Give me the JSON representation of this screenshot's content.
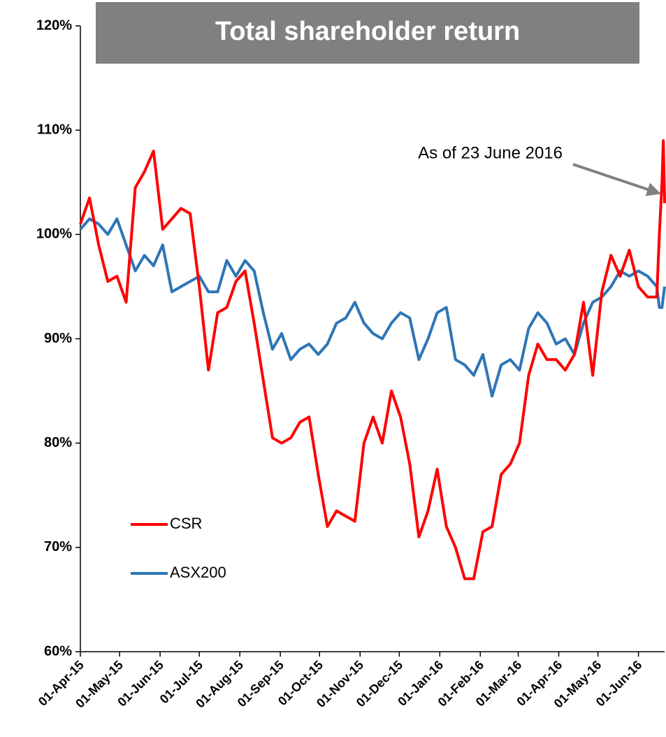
{
  "chart_data": {
    "type": "line",
    "title": "Total shareholder return",
    "annotations": [
      {
        "text": "As of 23 June 2016"
      }
    ],
    "x": [
      "2015-04-01",
      "2015-04-08",
      "2015-04-15",
      "2015-04-22",
      "2015-04-29",
      "2015-05-06",
      "2015-05-13",
      "2015-05-20",
      "2015-05-27",
      "2015-06-03",
      "2015-06-10",
      "2015-06-17",
      "2015-06-24",
      "2015-07-01",
      "2015-07-08",
      "2015-07-15",
      "2015-07-22",
      "2015-07-29",
      "2015-08-05",
      "2015-08-12",
      "2015-08-19",
      "2015-08-26",
      "2015-09-02",
      "2015-09-09",
      "2015-09-16",
      "2015-09-23",
      "2015-09-30",
      "2015-10-07",
      "2015-10-14",
      "2015-10-21",
      "2015-10-28",
      "2015-11-04",
      "2015-11-11",
      "2015-11-18",
      "2015-11-25",
      "2015-12-02",
      "2015-12-09",
      "2015-12-16",
      "2015-12-23",
      "2015-12-30",
      "2016-01-06",
      "2016-01-13",
      "2016-01-20",
      "2016-01-27",
      "2016-02-03",
      "2016-02-10",
      "2016-02-17",
      "2016-02-24",
      "2016-03-02",
      "2016-03-09",
      "2016-03-16",
      "2016-03-23",
      "2016-03-30",
      "2016-04-06",
      "2016-04-13",
      "2016-04-20",
      "2016-04-27",
      "2016-05-04",
      "2016-05-11",
      "2016-05-18",
      "2016-05-25",
      "2016-06-01",
      "2016-06-08",
      "2016-06-15",
      "2016-06-17",
      "2016-06-19",
      "2016-06-20",
      "2016-06-21"
    ],
    "series": [
      {
        "name": "CSR",
        "color": "#ff0000",
        "values": [
          101,
          103.5,
          99,
          95.5,
          96,
          93.5,
          104.5,
          106,
          108,
          100.5,
          101.5,
          102.5,
          102,
          95,
          87,
          92.5,
          93,
          95.5,
          96.5,
          91.5,
          86,
          80.5,
          80,
          80.5,
          82,
          82.5,
          77,
          72,
          73.5,
          73,
          72.5,
          80,
          82.5,
          80,
          85,
          82.5,
          78,
          71,
          73.5,
          77.5,
          72,
          70,
          67,
          67,
          71.5,
          72,
          77,
          78,
          80,
          86.5,
          89.5,
          88,
          88,
          87,
          88.5,
          93.5,
          86.5,
          94.5,
          98,
          96,
          98.5,
          95,
          94,
          94,
          100,
          105,
          109,
          103
        ]
      },
      {
        "name": "ASX200",
        "color": "#2e75b6",
        "values": [
          100.5,
          101.5,
          101,
          100,
          101.5,
          99,
          96.5,
          98,
          97,
          99,
          94.5,
          95,
          95.5,
          96,
          94.5,
          94.5,
          97.5,
          96,
          97.5,
          96.5,
          92.5,
          89,
          90.5,
          88,
          89,
          89.5,
          88.5,
          89.5,
          91.5,
          92,
          93.5,
          91.5,
          90.5,
          90,
          91.5,
          92.5,
          92,
          88,
          90,
          92.5,
          93,
          88,
          87.5,
          86.5,
          88.5,
          84.5,
          87.5,
          88,
          87,
          91,
          92.5,
          91.5,
          89.5,
          90,
          88.5,
          91.5,
          93.5,
          94,
          95,
          96.5,
          96,
          96.5,
          96,
          95,
          93,
          93,
          94,
          95
        ]
      }
    ],
    "xlim": [
      "2015-04-01",
      "2016-06-21"
    ],
    "xticks": [
      {
        "value": "2015-04-01",
        "label": "01-Apr-15"
      },
      {
        "value": "2015-05-01",
        "label": "01-May-15"
      },
      {
        "value": "2015-06-01",
        "label": "01-Jun-15"
      },
      {
        "value": "2015-07-01",
        "label": "01-Jul-15"
      },
      {
        "value": "2015-08-01",
        "label": "01-Aug-15"
      },
      {
        "value": "2015-09-01",
        "label": "01-Sep-15"
      },
      {
        "value": "2015-10-01",
        "label": "01-Oct-15"
      },
      {
        "value": "2015-11-01",
        "label": "01-Nov-15"
      },
      {
        "value": "2015-12-01",
        "label": "01-Dec-15"
      },
      {
        "value": "2016-01-01",
        "label": "01-Jan-16"
      },
      {
        "value": "2016-02-01",
        "label": "01-Feb-16"
      },
      {
        "value": "2016-03-01",
        "label": "01-Mar-16"
      },
      {
        "value": "2016-04-01",
        "label": "01-Apr-16"
      },
      {
        "value": "2016-05-01",
        "label": "01-May-16"
      },
      {
        "value": "2016-06-01",
        "label": "01-Jun-16"
      }
    ],
    "ylim": [
      60,
      120
    ],
    "yticks": [
      {
        "value": 60,
        "label": "60%"
      },
      {
        "value": 70,
        "label": "70%"
      },
      {
        "value": 80,
        "label": "80%"
      },
      {
        "value": 90,
        "label": "90%"
      },
      {
        "value": 100,
        "label": "100%"
      },
      {
        "value": 110,
        "label": "110%"
      },
      {
        "value": 120,
        "label": "120%"
      }
    ],
    "grid": false
  }
}
